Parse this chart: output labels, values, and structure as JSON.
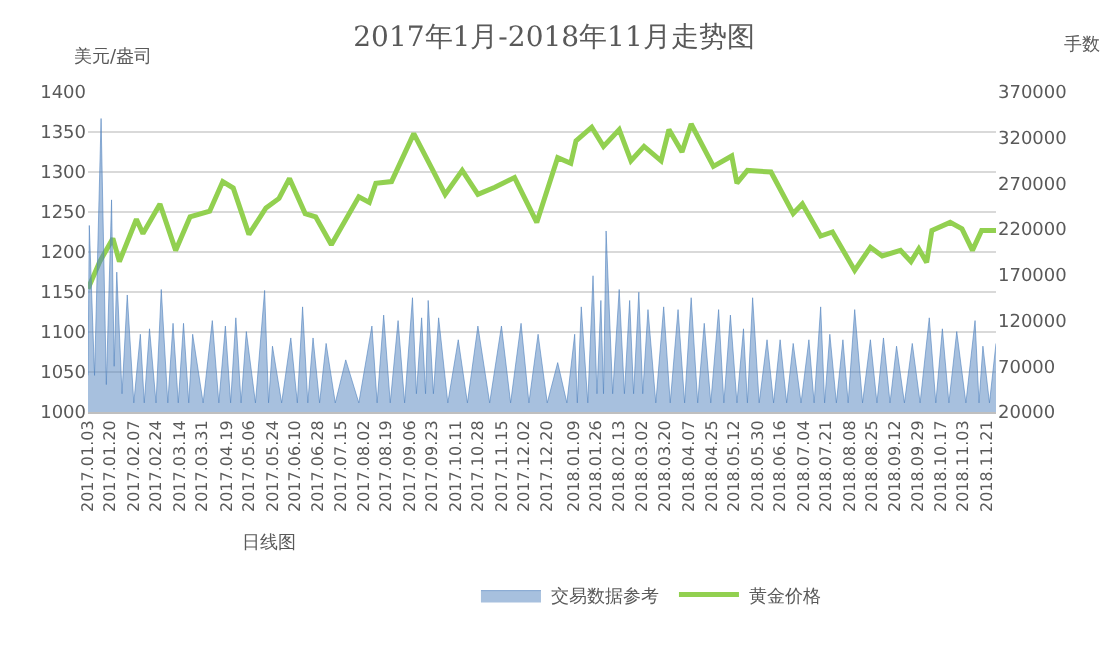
{
  "chart_data": {
    "type": "line",
    "title": "2017年1月-2018年11月走势图",
    "xlabel": "日线图",
    "ylabel": "美元/盎司",
    "y2label": "手数",
    "xlim": [
      "2017-01-03",
      "2018-11-28"
    ],
    "xticks": [
      {
        "value": "2017-01-03",
        "label": "2017.01.03"
      },
      {
        "value": "2017-01-20",
        "label": "2017.01.20"
      },
      {
        "value": "2017-02-07",
        "label": "2017.02.07"
      },
      {
        "value": "2017-02-24",
        "label": "2017.02.24"
      },
      {
        "value": "2017-03-14",
        "label": "2017.03.14"
      },
      {
        "value": "2017-03-31",
        "label": "2017.03.31"
      },
      {
        "value": "2017-04-19",
        "label": "2017.04.19"
      },
      {
        "value": "2017-05-06",
        "label": "2017.05.06"
      },
      {
        "value": "2017-05-24",
        "label": "2017.05.24"
      },
      {
        "value": "2017-06-10",
        "label": "2017.06.10"
      },
      {
        "value": "2017-06-28",
        "label": "2017.06.28"
      },
      {
        "value": "2017-07-15",
        "label": "2017.07.15"
      },
      {
        "value": "2017-08-02",
        "label": "2017.08.02"
      },
      {
        "value": "2017-08-19",
        "label": "2017.08.19"
      },
      {
        "value": "2017-09-06",
        "label": "2017.09.06"
      },
      {
        "value": "2017-09-23",
        "label": "2017.09.23"
      },
      {
        "value": "2017-10-11",
        "label": "2017.10.11"
      },
      {
        "value": "2017-10-28",
        "label": "2017.10.28"
      },
      {
        "value": "2017-11-15",
        "label": "2017.11.15"
      },
      {
        "value": "2017-12-02",
        "label": "2017.12.02"
      },
      {
        "value": "2017-12-20",
        "label": "2017.12.20"
      },
      {
        "value": "2018-01-09",
        "label": "2018.01.09"
      },
      {
        "value": "2018-01-26",
        "label": "2018.01.26"
      },
      {
        "value": "2018-02-13",
        "label": "2018.02.13"
      },
      {
        "value": "2018-03-02",
        "label": "2018.03.02"
      },
      {
        "value": "2018-03-20",
        "label": "2018.03.20"
      },
      {
        "value": "2018-04-07",
        "label": "2018.04.07"
      },
      {
        "value": "2018-04-25",
        "label": "2018.04.25"
      },
      {
        "value": "2018-05-12",
        "label": "2018.05.12"
      },
      {
        "value": "2018-05-30",
        "label": "2018.05.30"
      },
      {
        "value": "2018-06-16",
        "label": "2018.06.16"
      },
      {
        "value": "2018-07-04",
        "label": "2018.07.04"
      },
      {
        "value": "2018-07-21",
        "label": "2018.07.21"
      },
      {
        "value": "2018-08-08",
        "label": "2018.08.08"
      },
      {
        "value": "2018-08-25",
        "label": "2018.08.25"
      },
      {
        "value": "2018-09-12",
        "label": "2018.09.12"
      },
      {
        "value": "2018-09-29",
        "label": "2018.09.29"
      },
      {
        "value": "2018-10-17",
        "label": "2018.10.17"
      },
      {
        "value": "2018-11-03",
        "label": "2018.11.03"
      },
      {
        "value": "2018-11-21",
        "label": "2018.11.21"
      }
    ],
    "ylim": [
      1000,
      1400
    ],
    "yticks": [
      1000,
      1050,
      1100,
      1150,
      1200,
      1250,
      1300,
      1350,
      1400
    ],
    "y2lim": [
      20000,
      370000
    ],
    "y2ticks": [
      20000,
      70000,
      120000,
      170000,
      220000,
      270000,
      320000,
      370000
    ],
    "grid": "y",
    "legend": "bottom",
    "marker": "none",
    "series": [
      {
        "name": "交易数据参考",
        "type": "area",
        "axis": "y2",
        "color": "#4f81bd",
        "x": [
          "2017-01-03",
          "2017-01-04",
          "2017-01-08",
          "2017-01-13",
          "2017-01-17",
          "2017-01-21",
          "2017-01-23",
          "2017-01-25",
          "2017-01-29",
          "2017-02-02",
          "2017-02-07",
          "2017-02-12",
          "2017-02-15",
          "2017-02-19",
          "2017-02-24",
          "2017-02-28",
          "2017-03-05",
          "2017-03-09",
          "2017-03-13",
          "2017-03-17",
          "2017-03-21",
          "2017-03-24",
          "2017-04-01",
          "2017-04-08",
          "2017-04-13",
          "2017-04-18",
          "2017-04-22",
          "2017-04-26",
          "2017-04-30",
          "2017-05-04",
          "2017-05-11",
          "2017-05-18",
          "2017-05-21",
          "2017-05-24",
          "2017-05-31",
          "2017-06-07",
          "2017-06-12",
          "2017-06-16",
          "2017-06-20",
          "2017-06-24",
          "2017-06-29",
          "2017-07-04",
          "2017-07-11",
          "2017-07-19",
          "2017-07-29",
          "2017-08-08",
          "2017-08-12",
          "2017-08-17",
          "2017-08-22",
          "2017-08-28",
          "2017-09-02",
          "2017-09-08",
          "2017-09-11",
          "2017-09-15",
          "2017-09-18",
          "2017-09-20",
          "2017-09-24",
          "2017-09-28",
          "2017-10-05",
          "2017-10-13",
          "2017-10-20",
          "2017-10-28",
          "2017-11-06",
          "2017-11-15",
          "2017-11-22",
          "2017-11-30",
          "2017-12-06",
          "2017-12-13",
          "2017-12-20",
          "2017-12-28",
          "2018-01-04",
          "2018-01-10",
          "2018-01-12",
          "2018-01-15",
          "2018-01-20",
          "2018-01-24",
          "2018-01-27",
          "2018-01-30",
          "2018-02-01",
          "2018-02-03",
          "2018-02-08",
          "2018-02-13",
          "2018-02-17",
          "2018-02-21",
          "2018-02-24",
          "2018-02-28",
          "2018-03-03",
          "2018-03-07",
          "2018-03-13",
          "2018-03-19",
          "2018-03-24",
          "2018-03-30",
          "2018-04-04",
          "2018-04-09",
          "2018-04-14",
          "2018-04-19",
          "2018-04-24",
          "2018-04-30",
          "2018-05-04",
          "2018-05-09",
          "2018-05-14",
          "2018-05-19",
          "2018-05-22",
          "2018-05-26",
          "2018-05-31",
          "2018-06-06",
          "2018-06-11",
          "2018-06-16",
          "2018-06-21",
          "2018-06-26",
          "2018-07-02",
          "2018-07-08",
          "2018-07-12",
          "2018-07-17",
          "2018-07-20",
          "2018-07-24",
          "2018-07-29",
          "2018-08-03",
          "2018-08-07",
          "2018-08-12",
          "2018-08-18",
          "2018-08-24",
          "2018-08-29",
          "2018-09-03",
          "2018-09-08",
          "2018-09-13",
          "2018-09-19",
          "2018-09-25",
          "2018-10-01",
          "2018-10-08",
          "2018-10-13",
          "2018-10-18",
          "2018-10-23",
          "2018-10-29",
          "2018-11-05",
          "2018-11-12",
          "2018-11-15",
          "2018-11-18",
          "2018-11-23",
          "2018-11-28"
        ],
        "values": [
          60000,
          224000,
          60000,
          341000,
          50000,
          252000,
          70000,
          173000,
          40000,
          148000,
          30000,
          105000,
          30000,
          111000,
          30000,
          154000,
          30000,
          117000,
          30000,
          117000,
          30000,
          105000,
          30000,
          120000,
          30000,
          114000,
          30000,
          123000,
          30000,
          108000,
          30000,
          153000,
          30000,
          92000,
          30000,
          101000,
          30000,
          135000,
          30000,
          101000,
          30000,
          95000,
          30000,
          77000,
          30000,
          114000,
          30000,
          126000,
          30000,
          120000,
          30000,
          145000,
          40000,
          123000,
          40000,
          142000,
          40000,
          123000,
          30000,
          99000,
          30000,
          114000,
          30000,
          114000,
          30000,
          117000,
          30000,
          105000,
          30000,
          74000,
          30000,
          105000,
          30000,
          135000,
          30000,
          169000,
          40000,
          142000,
          40000,
          218000,
          40000,
          154000,
          40000,
          142000,
          40000,
          151000,
          40000,
          132000,
          30000,
          135000,
          30000,
          132000,
          30000,
          145000,
          30000,
          117000,
          30000,
          132000,
          30000,
          126000,
          30000,
          111000,
          30000,
          145000,
          30000,
          99000,
          30000,
          99000,
          30000,
          95000,
          30000,
          99000,
          30000,
          135000,
          30000,
          105000,
          30000,
          99000,
          30000,
          132000,
          30000,
          99000,
          30000,
          101000,
          30000,
          92000,
          30000,
          95000,
          30000,
          123000,
          30000,
          111000,
          30000,
          108000,
          30000,
          120000,
          30000,
          92000,
          30000,
          95000
        ]
      },
      {
        "name": "黄金价格",
        "color": "#92d050",
        "x": [
          "2017-01-03",
          "2017-01-12",
          "2017-01-22",
          "2017-01-27",
          "2017-02-09",
          "2017-02-14",
          "2017-02-27",
          "2017-03-11",
          "2017-03-22",
          "2017-04-06",
          "2017-04-16",
          "2017-04-24",
          "2017-05-06",
          "2017-05-19",
          "2017-05-29",
          "2017-06-06",
          "2017-06-18",
          "2017-06-26",
          "2017-07-08",
          "2017-07-29",
          "2017-08-06",
          "2017-08-11",
          "2017-08-23",
          "2017-09-09",
          "2017-09-23",
          "2017-10-03",
          "2017-10-16",
          "2017-10-28",
          "2017-11-10",
          "2017-11-25",
          "2017-12-12",
          "2017-12-28",
          "2018-01-07",
          "2018-01-11",
          "2018-01-23",
          "2018-02-01",
          "2018-02-13",
          "2018-02-22",
          "2018-03-04",
          "2018-03-17",
          "2018-03-23",
          "2018-04-02",
          "2018-04-09",
          "2018-04-26",
          "2018-05-10",
          "2018-05-14",
          "2018-05-22",
          "2018-06-09",
          "2018-06-26",
          "2018-07-03",
          "2018-07-17",
          "2018-07-26",
          "2018-08-12",
          "2018-08-24",
          "2018-09-02",
          "2018-09-16",
          "2018-09-24",
          "2018-09-30",
          "2018-10-06",
          "2018-10-10",
          "2018-10-24",
          "2018-11-02",
          "2018-11-10",
          "2018-11-17",
          "2018-11-28"
        ],
        "values": [
          1154,
          1188,
          1217,
          1188,
          1241,
          1223,
          1260,
          1202,
          1244,
          1251,
          1288,
          1280,
          1222,
          1255,
          1267,
          1292,
          1248,
          1244,
          1209,
          1269,
          1262,
          1286,
          1288,
          1348,
          1304,
          1272,
          1302,
          1272,
          1281,
          1293,
          1237,
          1318,
          1311,
          1339,
          1356,
          1332,
          1353,
          1314,
          1332,
          1314,
          1353,
          1325,
          1360,
          1307,
          1320,
          1286,
          1302,
          1300,
          1248,
          1260,
          1220,
          1225,
          1177,
          1206,
          1195,
          1202,
          1188,
          1204,
          1187,
          1227,
          1237,
          1229,
          1202,
          1227,
          1227
        ]
      }
    ]
  }
}
